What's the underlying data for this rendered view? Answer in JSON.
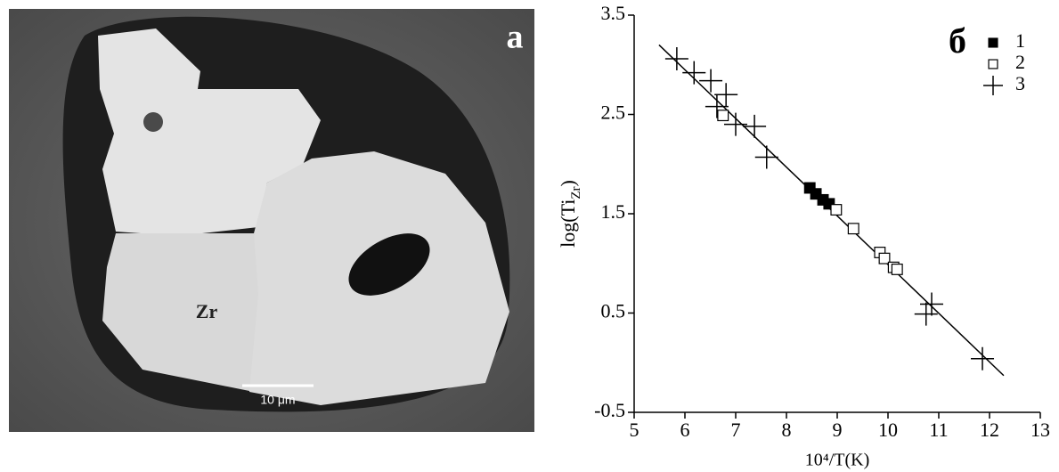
{
  "image_panel": {
    "label": "a",
    "annotation": "Zr",
    "scale_bar": "10 μm"
  },
  "chart_data": {
    "type": "scatter",
    "panel_label": "б",
    "x_label": "10⁴/T(K)",
    "y_label": {
      "main": "log(Ti",
      "sub": "Zr",
      "end": ")"
    },
    "xlim": [
      5,
      13
    ],
    "xticks": [
      5,
      6,
      7,
      8,
      9,
      10,
      11,
      12,
      13
    ],
    "ylim": [
      -0.5,
      3.5
    ],
    "yticks": [
      -0.5,
      0.5,
      1.5,
      2.5,
      3.5
    ],
    "legend": "upper right",
    "series": [
      {
        "name": "1",
        "color": "#000000",
        "marker": "filled-square",
        "x": [
          8.46,
          8.58,
          8.72,
          8.84
        ],
        "values": [
          1.76,
          1.7,
          1.64,
          1.6
        ]
      },
      {
        "name": "2",
        "color": "#000000",
        "marker": "open-square",
        "x": [
          6.75,
          8.98,
          9.32,
          9.84,
          9.93,
          10.11,
          10.18
        ],
        "values": [
          2.49,
          1.54,
          1.35,
          1.11,
          1.05,
          0.96,
          0.94
        ]
      },
      {
        "name": "3",
        "color": "#000000",
        "marker": "plus",
        "x": [
          5.84,
          6.18,
          6.51,
          6.63,
          6.81,
          7.0,
          7.37,
          7.61,
          10.75,
          10.86,
          11.86
        ],
        "values": [
          3.06,
          2.92,
          2.84,
          2.58,
          2.7,
          2.4,
          2.38,
          2.07,
          0.49,
          0.59,
          0.04
        ]
      }
    ],
    "fit": {
      "color": "#000000",
      "x": [
        5.49,
        12.28
      ],
      "values": [
        3.2,
        -0.13
      ]
    }
  }
}
